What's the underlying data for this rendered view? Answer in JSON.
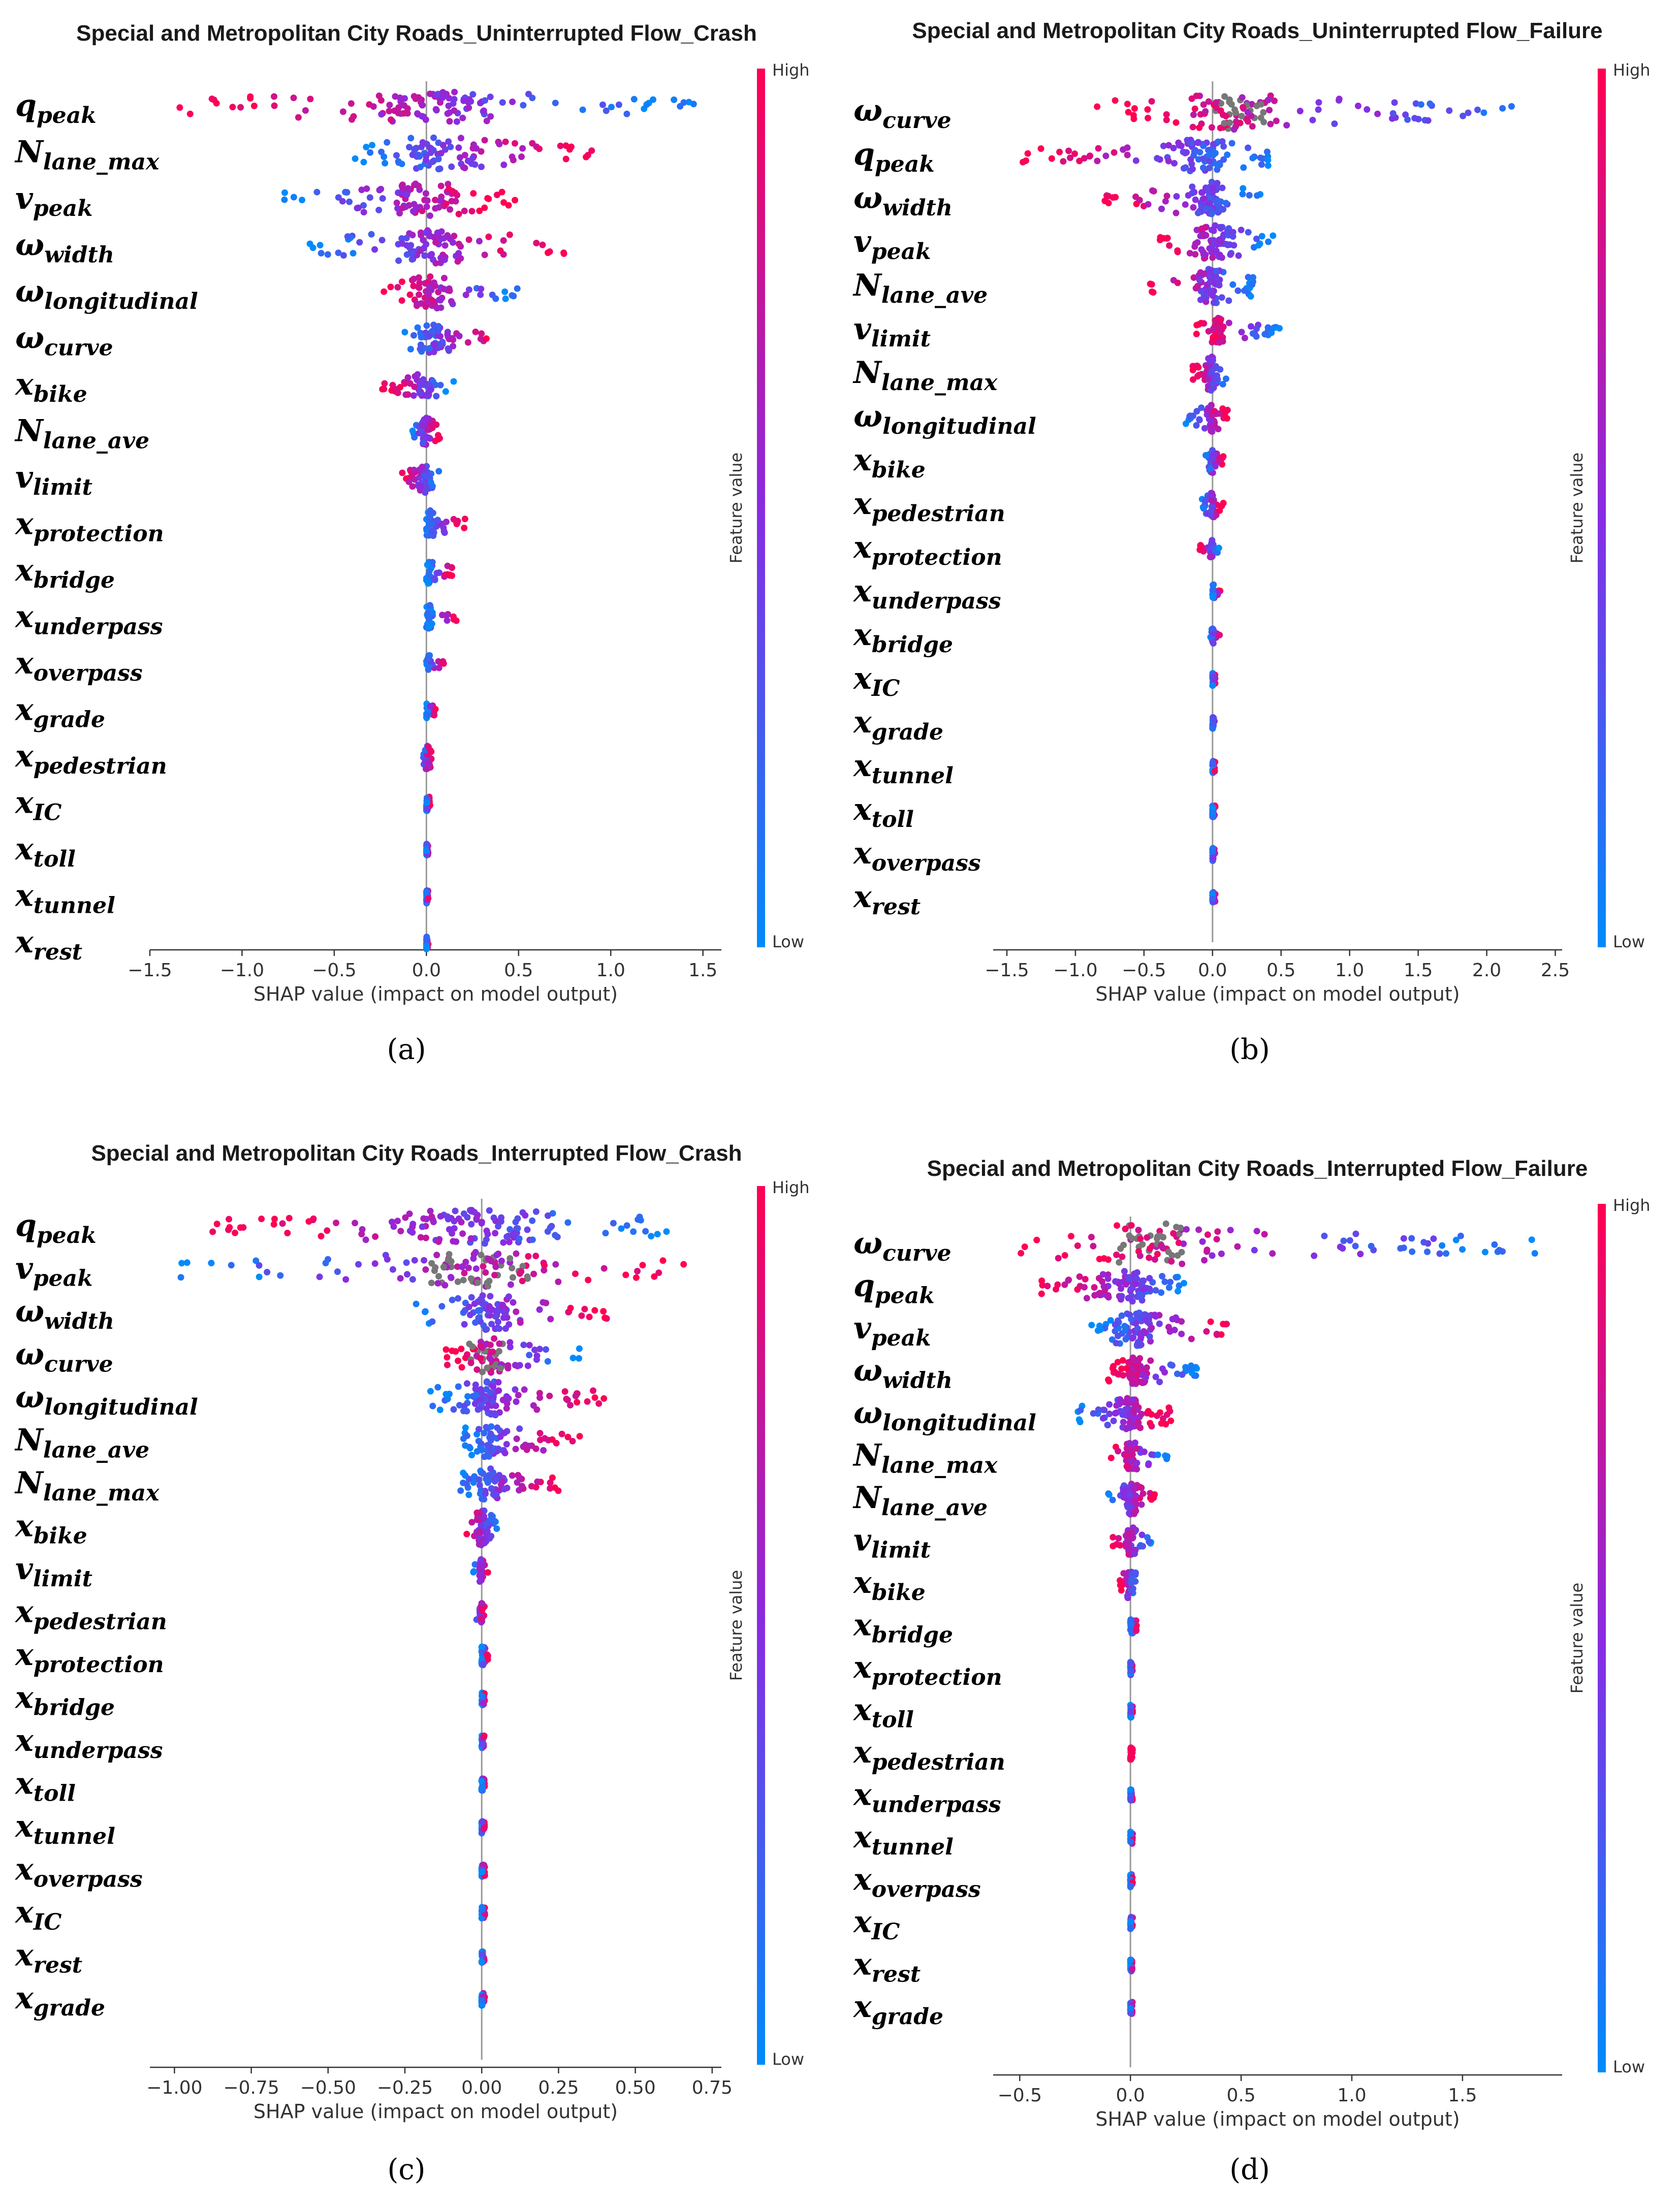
{
  "colors": {
    "high": "#ff0052",
    "mid": "#8a2be2",
    "low": "#008bfb",
    "missing": "#777777"
  },
  "colorbar": {
    "high_label": "High",
    "low_label": "Low",
    "title": "Feature value"
  },
  "chart_data": [
    {
      "type": "scatter",
      "subtype": "shap-beeswarm",
      "panel_label": "(a)",
      "title": "Special and Metropolitan City Roads_Uninterrupted Flow_Crash",
      "xlabel": "SHAP value (impact on model output)",
      "xlim": [
        -1.5,
        1.6
      ],
      "xticks": [
        -1.5,
        -1.0,
        -0.5,
        0.0,
        0.5,
        1.0,
        1.5
      ],
      "tick_labels": [
        "−1.5",
        "−1.0",
        "−0.5",
        "0.0",
        "0.5",
        "1.0",
        "1.5"
      ],
      "features": [
        {
          "base": "q",
          "sub": "peak",
          "min": -1.35,
          "max": 1.55,
          "lowSide": "right",
          "spread": 0.85,
          "density": 120,
          "w": 1.0
        },
        {
          "base": "N",
          "sub": "lane_max",
          "min": -0.4,
          "max": 0.95,
          "lowSide": "left",
          "spread": 0.55,
          "density": 90,
          "w": 1.1
        },
        {
          "base": "v",
          "sub": "peak",
          "min": -0.85,
          "max": 0.5,
          "lowSide": "left",
          "spread": 0.6,
          "density": 90,
          "w": 1.1
        },
        {
          "base": "ω",
          "sub": "width",
          "min": -0.65,
          "max": 0.75,
          "lowSide": "left",
          "spread": 0.5,
          "density": 90,
          "w": 1.1
        },
        {
          "base": "ω",
          "sub": "longitudinal",
          "min": -0.25,
          "max": 0.5,
          "lowSide": "right",
          "spread": 0.3,
          "density": 70,
          "w": 1.1
        },
        {
          "base": "ω",
          "sub": "curve",
          "min": -0.15,
          "max": 0.45,
          "lowSide": "left",
          "spread": 0.2,
          "density": 60,
          "w": 0.9
        },
        {
          "base": "x",
          "sub": "bike",
          "min": -0.25,
          "max": 0.15,
          "lowSide": "right",
          "spread": 0.15,
          "density": 50,
          "w": 0.8
        },
        {
          "base": "N",
          "sub": "lane_ave",
          "min": -0.08,
          "max": 0.08,
          "lowSide": "left",
          "spread": 0.08,
          "density": 50,
          "w": 0.9
        },
        {
          "base": "v",
          "sub": "limit",
          "min": -0.15,
          "max": 0.08,
          "lowSide": "right",
          "spread": 0.08,
          "density": 50,
          "w": 0.9
        },
        {
          "base": "x",
          "sub": "protection",
          "min": 0.0,
          "max": 0.22,
          "lowSide": "left",
          "spread": 0.08,
          "density": 40,
          "w": 0.9
        },
        {
          "base": "x",
          "sub": "bridge",
          "min": 0.0,
          "max": 0.15,
          "lowSide": "left",
          "spread": 0.05,
          "density": 35,
          "w": 0.8
        },
        {
          "base": "x",
          "sub": "underpass",
          "min": 0.0,
          "max": 0.18,
          "lowSide": "left",
          "spread": 0.05,
          "density": 35,
          "w": 0.8
        },
        {
          "base": "x",
          "sub": "overpass",
          "min": 0.0,
          "max": 0.1,
          "lowSide": "left",
          "spread": 0.03,
          "density": 30,
          "w": 0.6
        },
        {
          "base": "x",
          "sub": "grade",
          "min": 0.0,
          "max": 0.05,
          "lowSide": "left",
          "spread": 0.02,
          "density": 30,
          "w": 0.5
        },
        {
          "base": "x",
          "sub": "pedestrian",
          "min": -0.02,
          "max": 0.03,
          "lowSide": "left",
          "spread": 0.02,
          "density": 30,
          "w": 0.8
        },
        {
          "base": "x",
          "sub": "IC",
          "min": 0.0,
          "max": 0.02,
          "lowSide": "left",
          "spread": 0.01,
          "density": 25,
          "w": 0.5
        },
        {
          "base": "x",
          "sub": "toll",
          "min": 0.0,
          "max": 0.01,
          "lowSide": "left",
          "spread": 0.005,
          "density": 25,
          "w": 0.4
        },
        {
          "base": "x",
          "sub": "tunnel",
          "min": 0.0,
          "max": 0.01,
          "lowSide": "left",
          "spread": 0.005,
          "density": 25,
          "w": 0.4
        },
        {
          "base": "x",
          "sub": "rest",
          "min": 0.0,
          "max": 0.01,
          "lowSide": "left",
          "spread": 0.005,
          "density": 25,
          "w": 0.4
        }
      ]
    },
    {
      "type": "scatter",
      "subtype": "shap-beeswarm",
      "panel_label": "(b)",
      "title": "Special and Metropolitan City Roads_Uninterrupted Flow_Failure",
      "xlabel": "SHAP value (impact on model output)",
      "xlim": [
        -1.6,
        2.55
      ],
      "xticks": [
        -1.5,
        -1.0,
        -0.5,
        0.0,
        0.5,
        1.0,
        1.5,
        2.0,
        2.5
      ],
      "tick_labels": [
        "−1.5",
        "−1.0",
        "−0.5",
        "0.0",
        "0.5",
        "1.0",
        "1.5",
        "2.0",
        "2.5"
      ],
      "features": [
        {
          "base": "ω",
          "sub": "curve",
          "min": -0.85,
          "max": 2.4,
          "lowSide": "right",
          "spread": 0.7,
          "density": 120,
          "w": 1.1,
          "grey": true
        },
        {
          "base": "q",
          "sub": "peak",
          "min": -1.4,
          "max": 0.45,
          "lowSide": "right",
          "spread": 0.5,
          "density": 100,
          "w": 1.0
        },
        {
          "base": "ω",
          "sub": "width",
          "min": -0.8,
          "max": 0.35,
          "lowSide": "right",
          "spread": 0.3,
          "density": 90,
          "w": 1.1
        },
        {
          "base": "v",
          "sub": "peak",
          "min": -0.4,
          "max": 0.45,
          "lowSide": "right",
          "spread": 0.3,
          "density": 80,
          "w": 1.1
        },
        {
          "base": "N",
          "sub": "lane_ave",
          "min": -0.5,
          "max": 0.3,
          "lowSide": "right",
          "spread": 0.2,
          "density": 70,
          "w": 1.1
        },
        {
          "base": "v",
          "sub": "limit",
          "min": -0.12,
          "max": 0.5,
          "lowSide": "right",
          "spread": 0.1,
          "density": 60,
          "w": 0.8
        },
        {
          "base": "N",
          "sub": "lane_max",
          "min": -0.15,
          "max": 0.1,
          "lowSide": "right",
          "spread": 0.1,
          "density": 60,
          "w": 1.1
        },
        {
          "base": "ω",
          "sub": "longitudinal",
          "min": -0.2,
          "max": 0.12,
          "lowSide": "left",
          "spread": 0.08,
          "density": 50,
          "w": 0.9
        },
        {
          "base": "x",
          "sub": "bike",
          "min": -0.05,
          "max": 0.08,
          "lowSide": "left",
          "spread": 0.05,
          "density": 40,
          "w": 0.8
        },
        {
          "base": "x",
          "sub": "pedestrian",
          "min": -0.08,
          "max": 0.08,
          "lowSide": "left",
          "spread": 0.05,
          "density": 40,
          "w": 0.8
        },
        {
          "base": "x",
          "sub": "protection",
          "min": -0.1,
          "max": 0.05,
          "lowSide": "right",
          "spread": 0.03,
          "density": 30,
          "w": 0.6
        },
        {
          "base": "x",
          "sub": "underpass",
          "min": 0.0,
          "max": 0.06,
          "lowSide": "left",
          "spread": 0.02,
          "density": 25,
          "w": 0.5
        },
        {
          "base": "x",
          "sub": "bridge",
          "min": -0.02,
          "max": 0.06,
          "lowSide": "left",
          "spread": 0.02,
          "density": 25,
          "w": 0.5
        },
        {
          "base": "x",
          "sub": "IC",
          "min": 0.0,
          "max": 0.02,
          "lowSide": "left",
          "spread": 0.01,
          "density": 25,
          "w": 0.4
        },
        {
          "base": "x",
          "sub": "grade",
          "min": 0.0,
          "max": 0.02,
          "lowSide": "left",
          "spread": 0.01,
          "density": 25,
          "w": 0.4
        },
        {
          "base": "x",
          "sub": "tunnel",
          "min": 0.0,
          "max": 0.02,
          "lowSide": "left",
          "spread": 0.01,
          "density": 25,
          "w": 0.4
        },
        {
          "base": "x",
          "sub": "toll",
          "min": 0.0,
          "max": 0.02,
          "lowSide": "left",
          "spread": 0.01,
          "density": 25,
          "w": 0.4
        },
        {
          "base": "x",
          "sub": "overpass",
          "min": 0.0,
          "max": 0.02,
          "lowSide": "left",
          "spread": 0.01,
          "density": 25,
          "w": 0.4
        },
        {
          "base": "x",
          "sub": "rest",
          "min": 0.0,
          "max": 0.02,
          "lowSide": "left",
          "spread": 0.01,
          "density": 25,
          "w": 0.4
        }
      ]
    },
    {
      "type": "scatter",
      "subtype": "shap-beeswarm",
      "panel_label": "(c)",
      "title": "Special and Metropolitan City Roads_Interrupted Flow_Crash",
      "xlabel": "SHAP value (impact on model output)",
      "xlim": [
        -1.08,
        0.78
      ],
      "xticks": [
        -1.0,
        -0.75,
        -0.5,
        -0.25,
        0.0,
        0.25,
        0.5,
        0.75
      ],
      "tick_labels": [
        "−1.00",
        "−0.75",
        "−0.50",
        "−0.25",
        "0.00",
        "0.25",
        "0.50",
        "0.75"
      ],
      "features": [
        {
          "base": "q",
          "sub": "peak",
          "min": -0.88,
          "max": 0.62,
          "lowSide": "right",
          "spread": 0.55,
          "density": 130,
          "w": 1.1
        },
        {
          "base": "v",
          "sub": "peak",
          "min": -1.0,
          "max": 0.72,
          "lowSide": "left",
          "spread": 0.55,
          "density": 120,
          "w": 1.1,
          "grey": true
        },
        {
          "base": "ω",
          "sub": "width",
          "min": -0.22,
          "max": 0.45,
          "lowSide": "left",
          "spread": 0.25,
          "density": 90,
          "w": 1.1
        },
        {
          "base": "ω",
          "sub": "curve",
          "min": -0.12,
          "max": 0.32,
          "lowSide": "right",
          "spread": 0.18,
          "density": 80,
          "w": 1.1,
          "grey": true
        },
        {
          "base": "ω",
          "sub": "longitudinal",
          "min": -0.18,
          "max": 0.42,
          "lowSide": "left",
          "spread": 0.2,
          "density": 90,
          "w": 1.1
        },
        {
          "base": "N",
          "sub": "lane_ave",
          "min": -0.08,
          "max": 0.33,
          "lowSide": "left",
          "spread": 0.15,
          "density": 70,
          "w": 1.1
        },
        {
          "base": "N",
          "sub": "lane_max",
          "min": -0.08,
          "max": 0.25,
          "lowSide": "left",
          "spread": 0.15,
          "density": 70,
          "w": 1.0
        },
        {
          "base": "x",
          "sub": "bike",
          "min": -0.05,
          "max": 0.05,
          "lowSide": "right",
          "spread": 0.05,
          "density": 60,
          "w": 1.2
        },
        {
          "base": "v",
          "sub": "limit",
          "min": -0.03,
          "max": 0.02,
          "lowSide": "left",
          "spread": 0.02,
          "density": 40,
          "w": 0.8
        },
        {
          "base": "x",
          "sub": "pedestrian",
          "min": -0.02,
          "max": 0.01,
          "lowSide": "left",
          "spread": 0.01,
          "density": 35,
          "w": 0.6
        },
        {
          "base": "x",
          "sub": "protection",
          "min": 0.0,
          "max": 0.02,
          "lowSide": "left",
          "spread": 0.01,
          "density": 30,
          "w": 0.6
        },
        {
          "base": "x",
          "sub": "bridge",
          "min": 0.0,
          "max": 0.01,
          "lowSide": "left",
          "spread": 0.005,
          "density": 25,
          "w": 0.4
        },
        {
          "base": "x",
          "sub": "underpass",
          "min": 0.0,
          "max": 0.01,
          "lowSide": "left",
          "spread": 0.005,
          "density": 25,
          "w": 0.4
        },
        {
          "base": "x",
          "sub": "toll",
          "min": 0.0,
          "max": 0.01,
          "lowSide": "left",
          "spread": 0.005,
          "density": 25,
          "w": 0.4
        },
        {
          "base": "x",
          "sub": "tunnel",
          "min": 0.0,
          "max": 0.01,
          "lowSide": "left",
          "spread": 0.005,
          "density": 25,
          "w": 0.4
        },
        {
          "base": "x",
          "sub": "overpass",
          "min": 0.0,
          "max": 0.01,
          "lowSide": "left",
          "spread": 0.005,
          "density": 25,
          "w": 0.4
        },
        {
          "base": "x",
          "sub": "IC",
          "min": 0.0,
          "max": 0.01,
          "lowSide": "left",
          "spread": 0.005,
          "density": 25,
          "w": 0.4
        },
        {
          "base": "x",
          "sub": "rest",
          "min": 0.0,
          "max": 0.01,
          "lowSide": "left",
          "spread": 0.005,
          "density": 25,
          "w": 0.4
        },
        {
          "base": "x",
          "sub": "grade",
          "min": 0.0,
          "max": 0.01,
          "lowSide": "left",
          "spread": 0.005,
          "density": 25,
          "w": 0.4
        }
      ]
    },
    {
      "type": "scatter",
      "subtype": "shap-beeswarm",
      "panel_label": "(d)",
      "title": "Special and Metropolitan City Roads_Interrupted Flow_Failure",
      "xlabel": "SHAP value (impact on model output)",
      "xlim": [
        -0.62,
        1.95
      ],
      "xticks": [
        -0.5,
        0.0,
        0.5,
        1.0,
        1.5
      ],
      "tick_labels": [
        "−0.5",
        "0.0",
        "0.5",
        "1.0",
        "1.5"
      ],
      "features": [
        {
          "base": "ω",
          "sub": "curve",
          "min": -0.55,
          "max": 1.85,
          "lowSide": "right",
          "spread": 0.6,
          "density": 120,
          "w": 1.3,
          "grey": true
        },
        {
          "base": "q",
          "sub": "peak",
          "min": -0.42,
          "max": 0.25,
          "lowSide": "right",
          "spread": 0.3,
          "density": 90,
          "w": 1.0
        },
        {
          "base": "v",
          "sub": "peak",
          "min": -0.18,
          "max": 0.45,
          "lowSide": "left",
          "spread": 0.25,
          "density": 90,
          "w": 1.1
        },
        {
          "base": "ω",
          "sub": "width",
          "min": -0.1,
          "max": 0.32,
          "lowSide": "right",
          "spread": 0.15,
          "density": 80,
          "w": 0.9
        },
        {
          "base": "ω",
          "sub": "longitudinal",
          "min": -0.25,
          "max": 0.2,
          "lowSide": "left",
          "spread": 0.15,
          "density": 80,
          "w": 1.1
        },
        {
          "base": "N",
          "sub": "lane_max",
          "min": -0.1,
          "max": 0.17,
          "lowSide": "right",
          "spread": 0.08,
          "density": 50,
          "w": 0.9
        },
        {
          "base": "N",
          "sub": "lane_ave",
          "min": -0.12,
          "max": 0.12,
          "lowSide": "left",
          "spread": 0.1,
          "density": 60,
          "w": 1.0
        },
        {
          "base": "v",
          "sub": "limit",
          "min": -0.08,
          "max": 0.1,
          "lowSide": "right",
          "spread": 0.06,
          "density": 50,
          "w": 0.9
        },
        {
          "base": "x",
          "sub": "bike",
          "min": -0.05,
          "max": 0.03,
          "lowSide": "right",
          "spread": 0.03,
          "density": 40,
          "w": 1.0
        },
        {
          "base": "x",
          "sub": "bridge",
          "min": 0.0,
          "max": 0.03,
          "lowSide": "left",
          "spread": 0.01,
          "density": 25,
          "w": 0.5
        },
        {
          "base": "x",
          "sub": "protection",
          "min": 0.0,
          "max": 0.01,
          "lowSide": "left",
          "spread": 0.005,
          "density": 25,
          "w": 0.4
        },
        {
          "base": "x",
          "sub": "toll",
          "min": 0.0,
          "max": 0.01,
          "lowSide": "left",
          "spread": 0.005,
          "density": 25,
          "w": 0.4
        },
        {
          "base": "x",
          "sub": "pedestrian",
          "min": 0.0,
          "max": 0.01,
          "lowSide": "left",
          "spread": 0.005,
          "density": 25,
          "w": 0.4,
          "allHigh": true
        },
        {
          "base": "x",
          "sub": "underpass",
          "min": 0.0,
          "max": 0.01,
          "lowSide": "left",
          "spread": 0.005,
          "density": 25,
          "w": 0.4
        },
        {
          "base": "x",
          "sub": "tunnel",
          "min": 0.0,
          "max": 0.01,
          "lowSide": "left",
          "spread": 0.005,
          "density": 25,
          "w": 0.4
        },
        {
          "base": "x",
          "sub": "overpass",
          "min": 0.0,
          "max": 0.01,
          "lowSide": "left",
          "spread": 0.005,
          "density": 25,
          "w": 0.4
        },
        {
          "base": "x",
          "sub": "IC",
          "min": 0.0,
          "max": 0.01,
          "lowSide": "left",
          "spread": 0.005,
          "density": 25,
          "w": 0.4
        },
        {
          "base": "x",
          "sub": "rest",
          "min": 0.0,
          "max": 0.01,
          "lowSide": "left",
          "spread": 0.005,
          "density": 25,
          "w": 0.4
        },
        {
          "base": "x",
          "sub": "grade",
          "min": 0.0,
          "max": 0.01,
          "lowSide": "left",
          "spread": 0.005,
          "density": 25,
          "w": 0.4
        }
      ]
    }
  ]
}
